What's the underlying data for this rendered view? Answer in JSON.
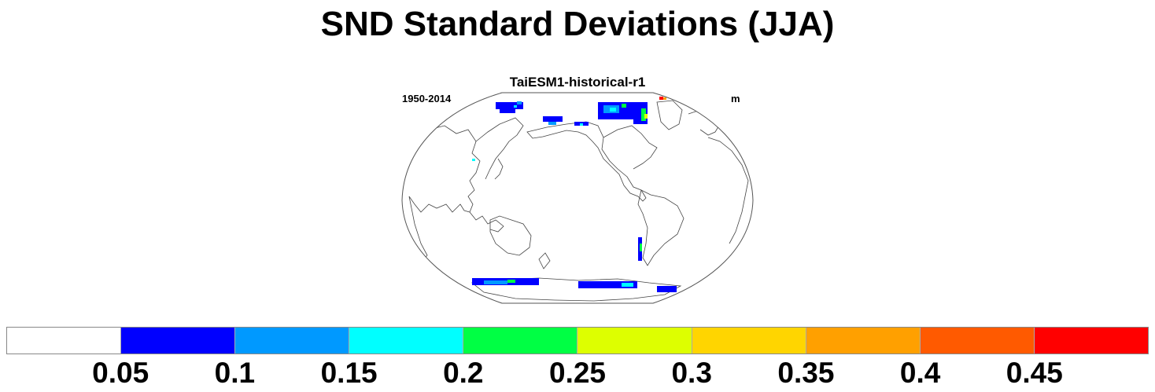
{
  "title": "SND Standard Deviations (JJA)",
  "subtitle": "TaiESM1-historical-r1",
  "left_string": "1950-2014",
  "right_string": "m",
  "colorbar": {
    "colors": [
      "#ffffff",
      "#0000ff",
      "#0099ff",
      "#00ffff",
      "#00ff44",
      "#ddff00",
      "#ffd500",
      "#ffa000",
      "#ff5a00",
      "#ff0000"
    ],
    "labels": [
      "0.05",
      "0.1",
      "0.15",
      "0.2",
      "0.25",
      "0.3",
      "0.35",
      "0.4",
      "0.45"
    ]
  }
}
